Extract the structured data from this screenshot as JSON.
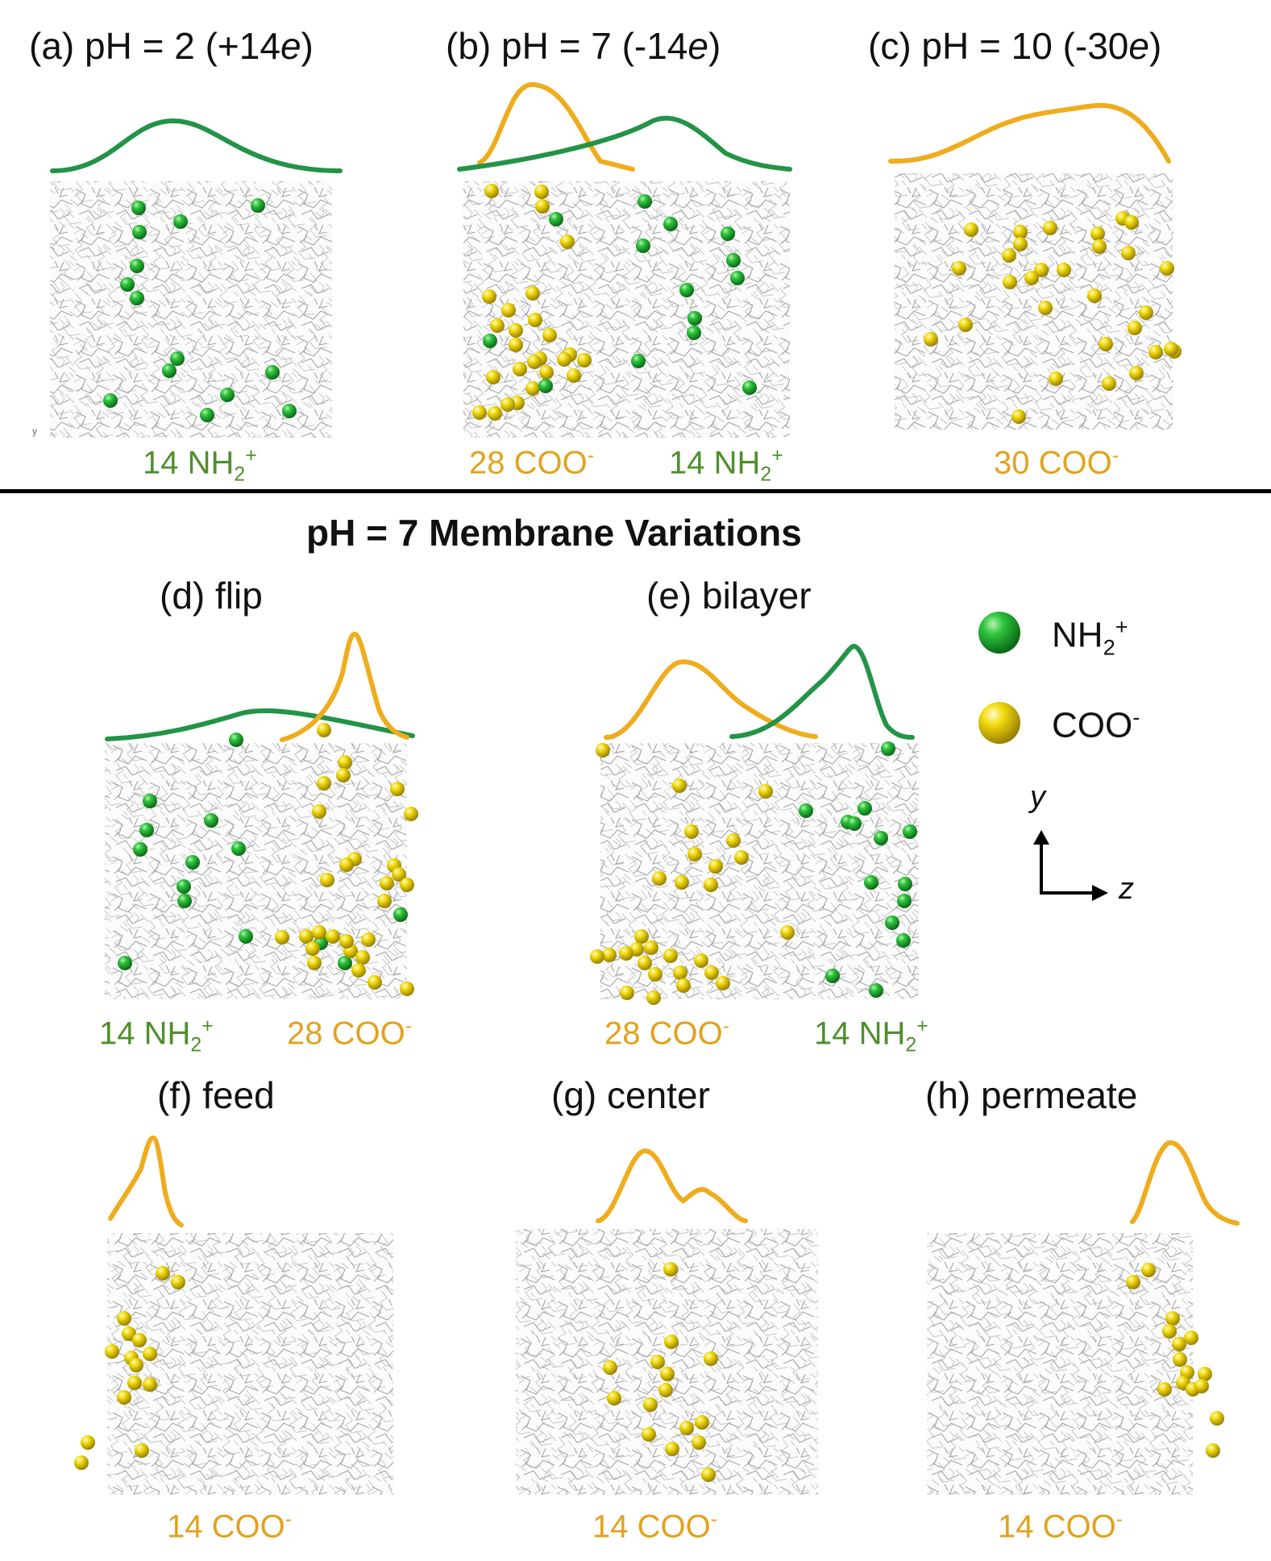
{
  "panels": {
    "a": {
      "title": "(a) pH = 2 (+14e)"
    },
    "b": {
      "title": "(b) pH = 7 (-14e)"
    },
    "c": {
      "title": "(c) pH = 10 (-30e)"
    },
    "d": {
      "title": "(d) flip"
    },
    "e": {
      "title": "(e) bilayer"
    },
    "f": {
      "title": "(f) feed"
    },
    "g": {
      "title": "(g) center"
    },
    "h": {
      "title": "(h) permeate"
    }
  },
  "section_title": "pH = 7 Membrane Variations",
  "counts": {
    "a_nh2": "14 NH2+",
    "b_coo": "28 COO-",
    "b_nh2": "14 NH2+",
    "c_coo": "30 COO-",
    "d_nh2": "14 NH2+",
    "d_coo": "28 COO-",
    "e_coo": "28 COO-",
    "e_nh2": "14 NH2+",
    "f_coo": "14 COO-",
    "g_coo": "14 COO-",
    "h_coo": "14 COO-"
  },
  "legend": {
    "nh2": "NH2+",
    "coo": "COO-"
  },
  "axes": {
    "y": "y",
    "z": "z"
  },
  "corner_label": "y",
  "colors": {
    "nh2": "#1a9a2c",
    "coo": "#e8c200",
    "nh2_curve": "#239347",
    "coo_curve": "#efac1d",
    "nh2_text": "#4e8f2c",
    "coo_text": "#e3a21c"
  }
}
